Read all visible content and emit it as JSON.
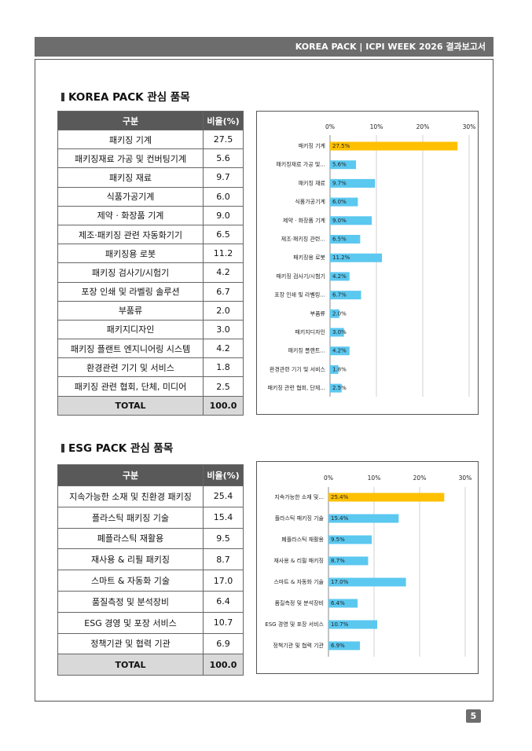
{
  "header": {
    "title": "KOREA PACK | ICPI WEEK 2026 결과보고서"
  },
  "page_number": "5",
  "sections": [
    {
      "title": "KOREA PACK 관심 품목",
      "table": {
        "header": [
          "구분",
          "비율(%)"
        ],
        "rows": [
          [
            "패키징 기계",
            "27.5"
          ],
          [
            "패키징재료 가공 및 컨버팅기계",
            "5.6"
          ],
          [
            "패키징 재료",
            "9.7"
          ],
          [
            "식품가공기계",
            "6.0"
          ],
          [
            "제약 · 화장품 기계",
            "9.0"
          ],
          [
            "제조·패키징 관련 자동화기기",
            "6.5"
          ],
          [
            "패키징용 로봇",
            "11.2"
          ],
          [
            "패키징 검사기/시험기",
            "4.2"
          ],
          [
            "포장 인쇄 및 라벨링 솔루션",
            "6.7"
          ],
          [
            "부품류",
            "2.0"
          ],
          [
            "패키지디자인",
            "3.0"
          ],
          [
            "패키징 플랜트 엔지니어링 시스템",
            "4.2"
          ],
          [
            "환경관련 기기 및 서비스",
            "1.8"
          ],
          [
            "패키징 관련 협회, 단체, 미디어",
            "2.5"
          ]
        ],
        "total": [
          "TOTAL",
          "100.0"
        ]
      },
      "chart": {
        "type": "bar",
        "orientation": "horizontal",
        "categories": [
          "패키징 기계",
          "패키징재료 가공 및...",
          "패키징 재료",
          "식품가공기계",
          "제약 · 화장품 기계",
          "제조·패키징 관련...",
          "패키징용 로봇",
          "패키징 검사기/시험기",
          "포장 인쇄 및 라벨링...",
          "부품류",
          "패키지디자인",
          "패키징 플랜트...",
          "환경관련 기기 및 서비스",
          "패키징 관련 협회, 단체..."
        ],
        "values": [
          27.5,
          5.6,
          9.7,
          6.0,
          9.0,
          6.5,
          11.2,
          4.2,
          6.7,
          2.0,
          3.0,
          4.2,
          1.8,
          2.5
        ],
        "value_labels": [
          "27.5%",
          "5.6%",
          "9.7%",
          "6.0%",
          "9.0%",
          "6.5%",
          "11.2%",
          "4.2%",
          "6.7%",
          "2.0%",
          "3.0%",
          "4.2%",
          "1.8%",
          "2.5%"
        ],
        "colors": [
          "#ffc000",
          "#5bc8f0",
          "#5bc8f0",
          "#5bc8f0",
          "#5bc8f0",
          "#5bc8f0",
          "#5bc8f0",
          "#5bc8f0",
          "#5bc8f0",
          "#5bc8f0",
          "#5bc8f0",
          "#5bc8f0",
          "#5bc8f0",
          "#5bc8f0"
        ],
        "xlim": [
          0,
          30
        ],
        "xticks": [
          {
            "value": 0,
            "label": "0%"
          },
          {
            "value": 10,
            "label": "10%"
          },
          {
            "value": 20,
            "label": "20%"
          },
          {
            "value": 30,
            "label": "30%"
          }
        ],
        "grid": true
      }
    },
    {
      "title": "ESG PACK 관심 품목",
      "table": {
        "header": [
          "구분",
          "비율(%)"
        ],
        "rows": [
          [
            "지속가능한 소재 및 친환경 패키징",
            "25.4"
          ],
          [
            "플라스틱 패키징 기술",
            "15.4"
          ],
          [
            "폐플라스틱 재활용",
            "9.5"
          ],
          [
            "재사용 & 리필 패키징",
            "8.7"
          ],
          [
            "스마트 & 자동화 기술",
            "17.0"
          ],
          [
            "품질측정 및 분석장비",
            "6.4"
          ],
          [
            "ESG 경영 및 포장 서비스",
            "10.7"
          ],
          [
            "정책기관 및 협력 기관",
            "6.9"
          ]
        ],
        "total": [
          "TOTAL",
          "100.0"
        ]
      },
      "chart": {
        "type": "bar",
        "orientation": "horizontal",
        "categories": [
          "지속가능한 소재 및...",
          "플라스틱 패키징 기술",
          "폐플라스틱 재활용",
          "재사용 & 리필 패키징",
          "스마트 & 자동화 기술",
          "품질측정 및 분석장비",
          "ESG 경영 및 포장 서비스",
          "정책기관 및 협력 기관"
        ],
        "values": [
          25.4,
          15.4,
          9.5,
          8.7,
          17.0,
          6.4,
          10.7,
          6.9
        ],
        "value_labels": [
          "25.4%",
          "15.4%",
          "9.5%",
          "8.7%",
          "17.0%",
          "6.4%",
          "10.7%",
          "6.9%"
        ],
        "colors": [
          "#ffc000",
          "#5bc8f0",
          "#5bc8f0",
          "#5bc8f0",
          "#5bc8f0",
          "#5bc8f0",
          "#5bc8f0",
          "#5bc8f0"
        ],
        "xlim": [
          0,
          30
        ],
        "xticks": [
          {
            "value": 0,
            "label": "0%"
          },
          {
            "value": 10,
            "label": "10%"
          },
          {
            "value": 20,
            "label": "20%"
          },
          {
            "value": 30,
            "label": "30%"
          }
        ],
        "grid": true
      }
    }
  ]
}
